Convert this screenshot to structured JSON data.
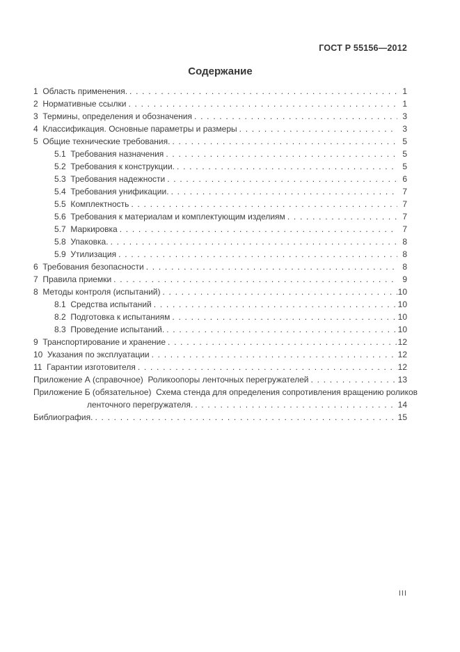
{
  "document": {
    "doc_number": "ГОСТ Р 55156—2012",
    "title": "Содержание",
    "page_number": "III"
  },
  "toc": {
    "entries": [
      {
        "text": "1  Область применения.",
        "page": "1",
        "indent": 0
      },
      {
        "text": "2  Нормативные ссылки",
        "page": "1",
        "indent": 0
      },
      {
        "text": "3  Термины, определения и обозначения",
        "page": "3",
        "indent": 0
      },
      {
        "text": "4  Классификация. Основные параметры и размеры",
        "page": "3",
        "indent": 0
      },
      {
        "text": "5  Общие технические требования.",
        "page": "5",
        "indent": 0
      },
      {
        "text": "5.1  Требования назначения",
        "page": "5",
        "indent": 1
      },
      {
        "text": "5.2  Требования к конструкции.",
        "page": "5",
        "indent": 1
      },
      {
        "text": "5.3  Требования надежности",
        "page": "6",
        "indent": 1
      },
      {
        "text": "5.4  Требования унификации.",
        "page": "7",
        "indent": 1
      },
      {
        "text": "5.5  Комплектность",
        "page": "7",
        "indent": 1
      },
      {
        "text": "5.6  Требования к материалам и комплектующим изделиям",
        "page": "7",
        "indent": 1
      },
      {
        "text": "5.7  Маркировка",
        "page": "7",
        "indent": 1
      },
      {
        "text": "5.8  Упаковка.",
        "page": "8",
        "indent": 1
      },
      {
        "text": "5.9  Утилизация",
        "page": "8",
        "indent": 1
      },
      {
        "text": "6  Требования безопасности",
        "page": "8",
        "indent": 0
      },
      {
        "text": "7  Правила приемки",
        "page": "9",
        "indent": 0
      },
      {
        "text": "8  Методы контроля (испытаний)",
        "page": "10",
        "indent": 0
      },
      {
        "text": "8.1  Средства испытаний",
        "page": "10",
        "indent": 1
      },
      {
        "text": "8.2  Подготовка к испытаниям",
        "page": "10",
        "indent": 1
      },
      {
        "text": "8.3  Проведение испытаний.",
        "page": "10",
        "indent": 1
      },
      {
        "text": "9  Транспортирование и хранение",
        "page": "12",
        "indent": 0
      },
      {
        "text": "10  Указания по эксплуатации",
        "page": "12",
        "indent": 0
      },
      {
        "text": "11  Гарантии изготовителя",
        "page": "12",
        "indent": 0
      },
      {
        "text": "Приложение А (справочное)  Роликоопоры ленточных перегружателей",
        "page": "13",
        "indent": 0
      },
      {
        "text": "Приложение Б (обязательное)  Схема стенда для определения сопротивления вращению роликов",
        "page": null,
        "indent": 0,
        "leader": false
      },
      {
        "text": "ленточного перегружателя.",
        "page": "14",
        "indent": 2
      },
      {
        "text": "Библиография.",
        "page": "15",
        "indent": 0
      }
    ]
  }
}
